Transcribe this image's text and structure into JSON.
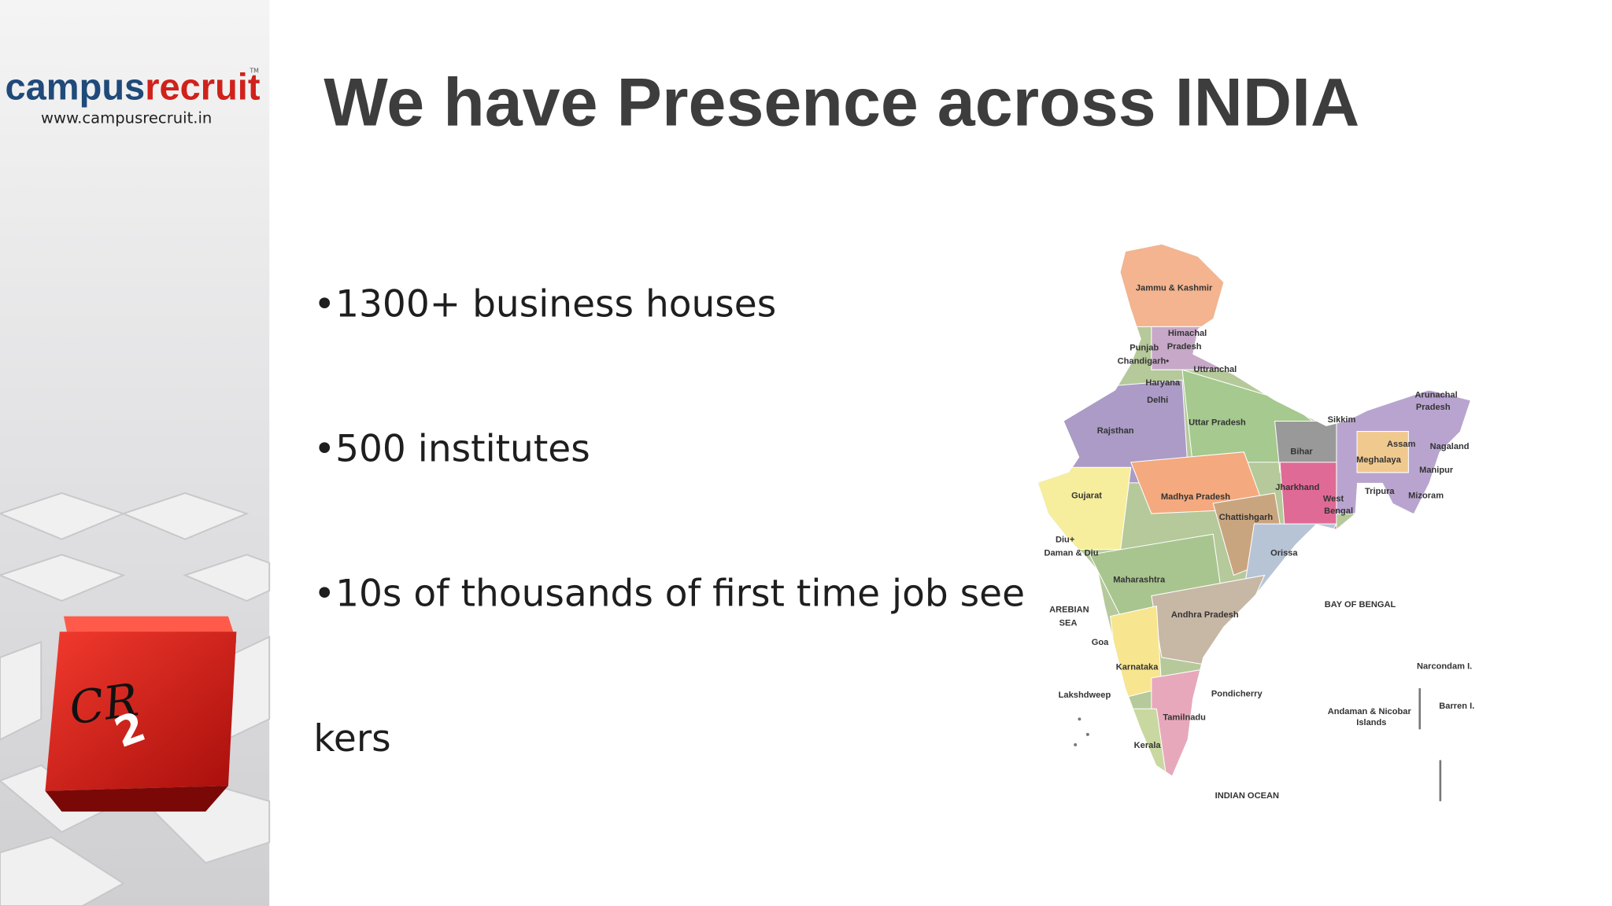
{
  "logo": {
    "wordmark": [
      "campus",
      "recruit"
    ],
    "trademark": "TM",
    "url": "www.campusrecruit.in"
  },
  "cube": {
    "text": "CR",
    "superscript": "2"
  },
  "title": "We have Presence across INDIA",
  "bullets": [
    "•1300+   business houses",
    "•500 institutes",
    "•10s of thousands of first time job see",
    "kers"
  ],
  "map": {
    "labels": [
      "Jammu & Kashmir",
      "Himachal",
      "Pradesh",
      "Punjab",
      "Chandigarh•",
      "Uttranchal",
      "Haryana",
      "Delhi",
      "Rajsthan",
      "Uttar Pradesh",
      "Sikkim",
      "Arunachal",
      "Pradesh",
      "Assam",
      "Nagaland",
      "Bihar",
      "Meghalaya",
      "Manipur",
      "Jharkhand",
      "Tripura",
      "Mizoram",
      "West",
      "Bengal",
      "Gujarat",
      "Madhya Pradesh",
      "Chattishgarh",
      "Diu+",
      "Daman & Diu",
      "Orissa",
      "Maharashtra",
      "BAY OF BENGAL",
      "AREBIAN",
      "SEA",
      "Andhra Pradesh",
      "Goa",
      "Narcondam I.",
      "Karnataka",
      "Lakshdweep",
      "Pondicherry",
      "Barren I.",
      "Andaman & Nicobar",
      "Islands",
      "Tamilnadu",
      "Kerala",
      "INDIAN OCEAN"
    ]
  }
}
